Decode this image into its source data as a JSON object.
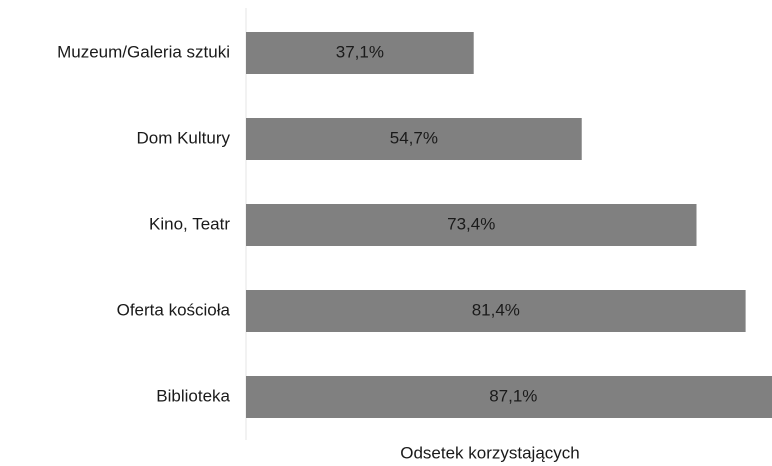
{
  "chart_data": {
    "type": "bar",
    "orientation": "horizontal",
    "categories": [
      "Muzeum/Galeria sztuki",
      "Dom Kultury",
      "Kino, Teatr",
      "Oferta kościoła",
      "Biblioteka"
    ],
    "values": [
      37.1,
      54.7,
      73.4,
      81.4,
      87.1
    ],
    "value_labels": [
      "37,1%",
      "54,7%",
      "73,4%",
      "81,4%",
      "87,1%"
    ],
    "color": "#808080",
    "xlim": [
      0,
      85.7
    ],
    "x_label": "Odsetek korzystających"
  }
}
